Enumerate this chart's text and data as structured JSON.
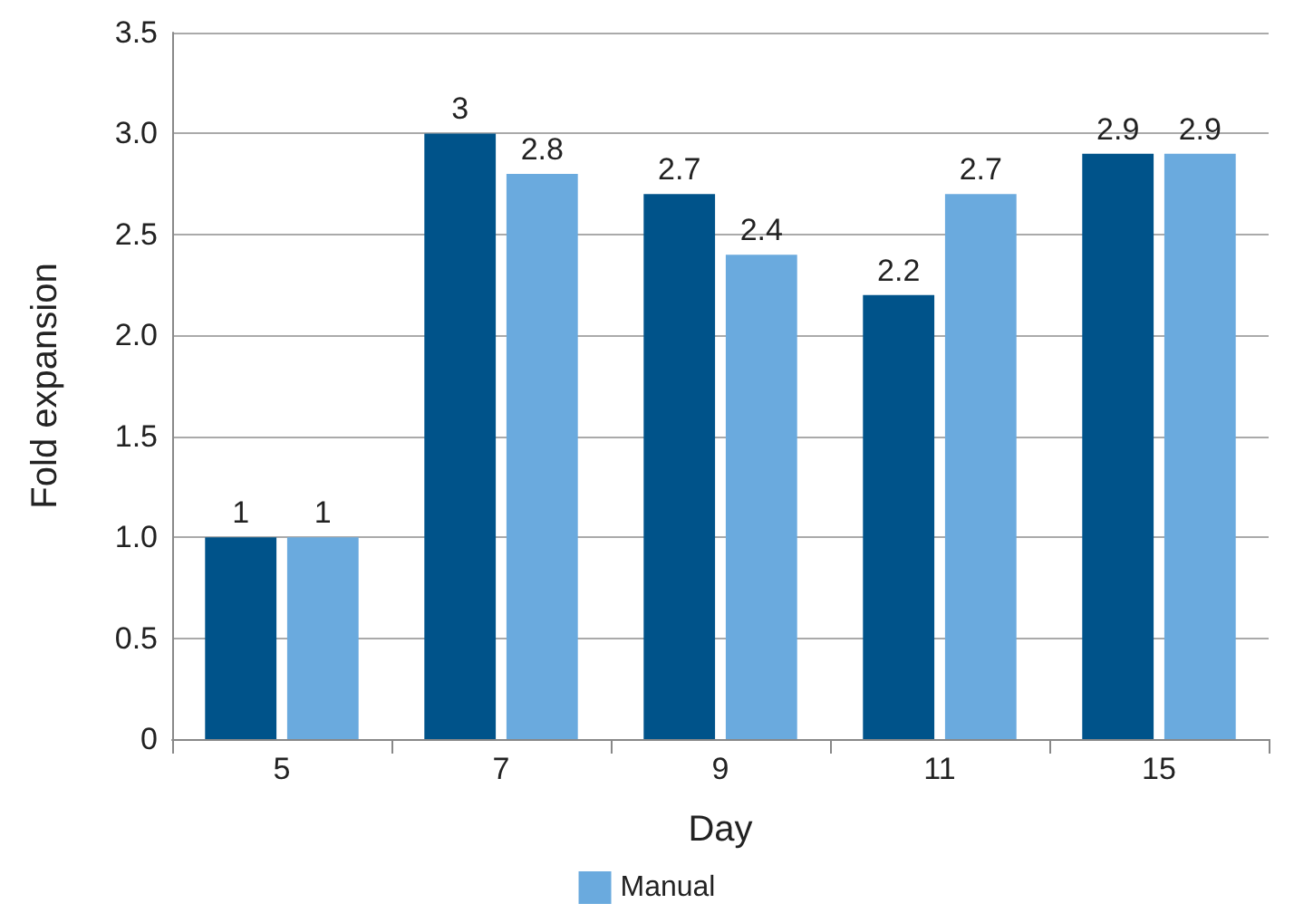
{
  "chart_data": {
    "type": "bar",
    "xlabel": "Day",
    "ylabel": "Fold expansion",
    "categories": [
      "5",
      "7",
      "9",
      "11",
      "15"
    ],
    "series": [
      {
        "color": "#00538a",
        "values": [
          1,
          3,
          2.7,
          2.2,
          2.9
        ]
      },
      {
        "name": "Manual",
        "color": "#6aaade",
        "values": [
          1,
          2.8,
          2.4,
          2.7,
          2.9
        ]
      }
    ],
    "ylim": [
      0,
      3.5
    ],
    "yticks": [
      0,
      0.5,
      {
        "value": 1,
        "label": "1.0"
      },
      1.5,
      {
        "value": 2,
        "label": "2.0"
      },
      2.5,
      {
        "value": 3,
        "label": "3.0"
      },
      3.5
    ],
    "grid": "y",
    "legend": "bottom",
    "data_labels": true
  }
}
